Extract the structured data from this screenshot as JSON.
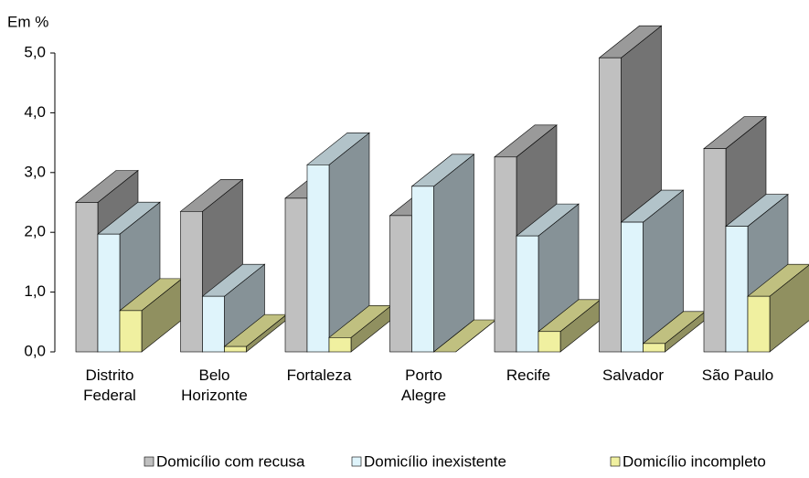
{
  "chart_data": {
    "type": "bar3d",
    "y_axis_title": "Em %",
    "categories": [
      "Distrito\nFederal",
      "Belo\nHorizonte",
      "Fortaleza",
      "Porto\nAlegre",
      "Recife",
      "Salvador",
      "São Paulo"
    ],
    "series": [
      {
        "name": "Domicílio com recusa",
        "color": "#c0c0c0",
        "values": [
          2.5,
          2.35,
          2.57,
          2.28,
          3.26,
          4.92,
          3.4
        ]
      },
      {
        "name": "Domicílio inexistente",
        "color": "#dff4fb",
        "values": [
          1.97,
          0.93,
          3.13,
          2.77,
          1.94,
          2.17,
          2.1
        ]
      },
      {
        "name": "Domicílio incompleto",
        "color": "#f0f0a0",
        "values": [
          0.69,
          0.09,
          0.24,
          0.0,
          0.34,
          0.14,
          0.93
        ]
      }
    ],
    "ylim": [
      0,
      5
    ],
    "yticks": [
      {
        "value": 0,
        "label": "0,0"
      },
      {
        "value": 1,
        "label": "1,0"
      },
      {
        "value": 2,
        "label": "2,0"
      },
      {
        "value": 3,
        "label": "3,0"
      },
      {
        "value": 4,
        "label": "4,0"
      },
      {
        "value": 5,
        "label": "5,0"
      }
    ]
  }
}
